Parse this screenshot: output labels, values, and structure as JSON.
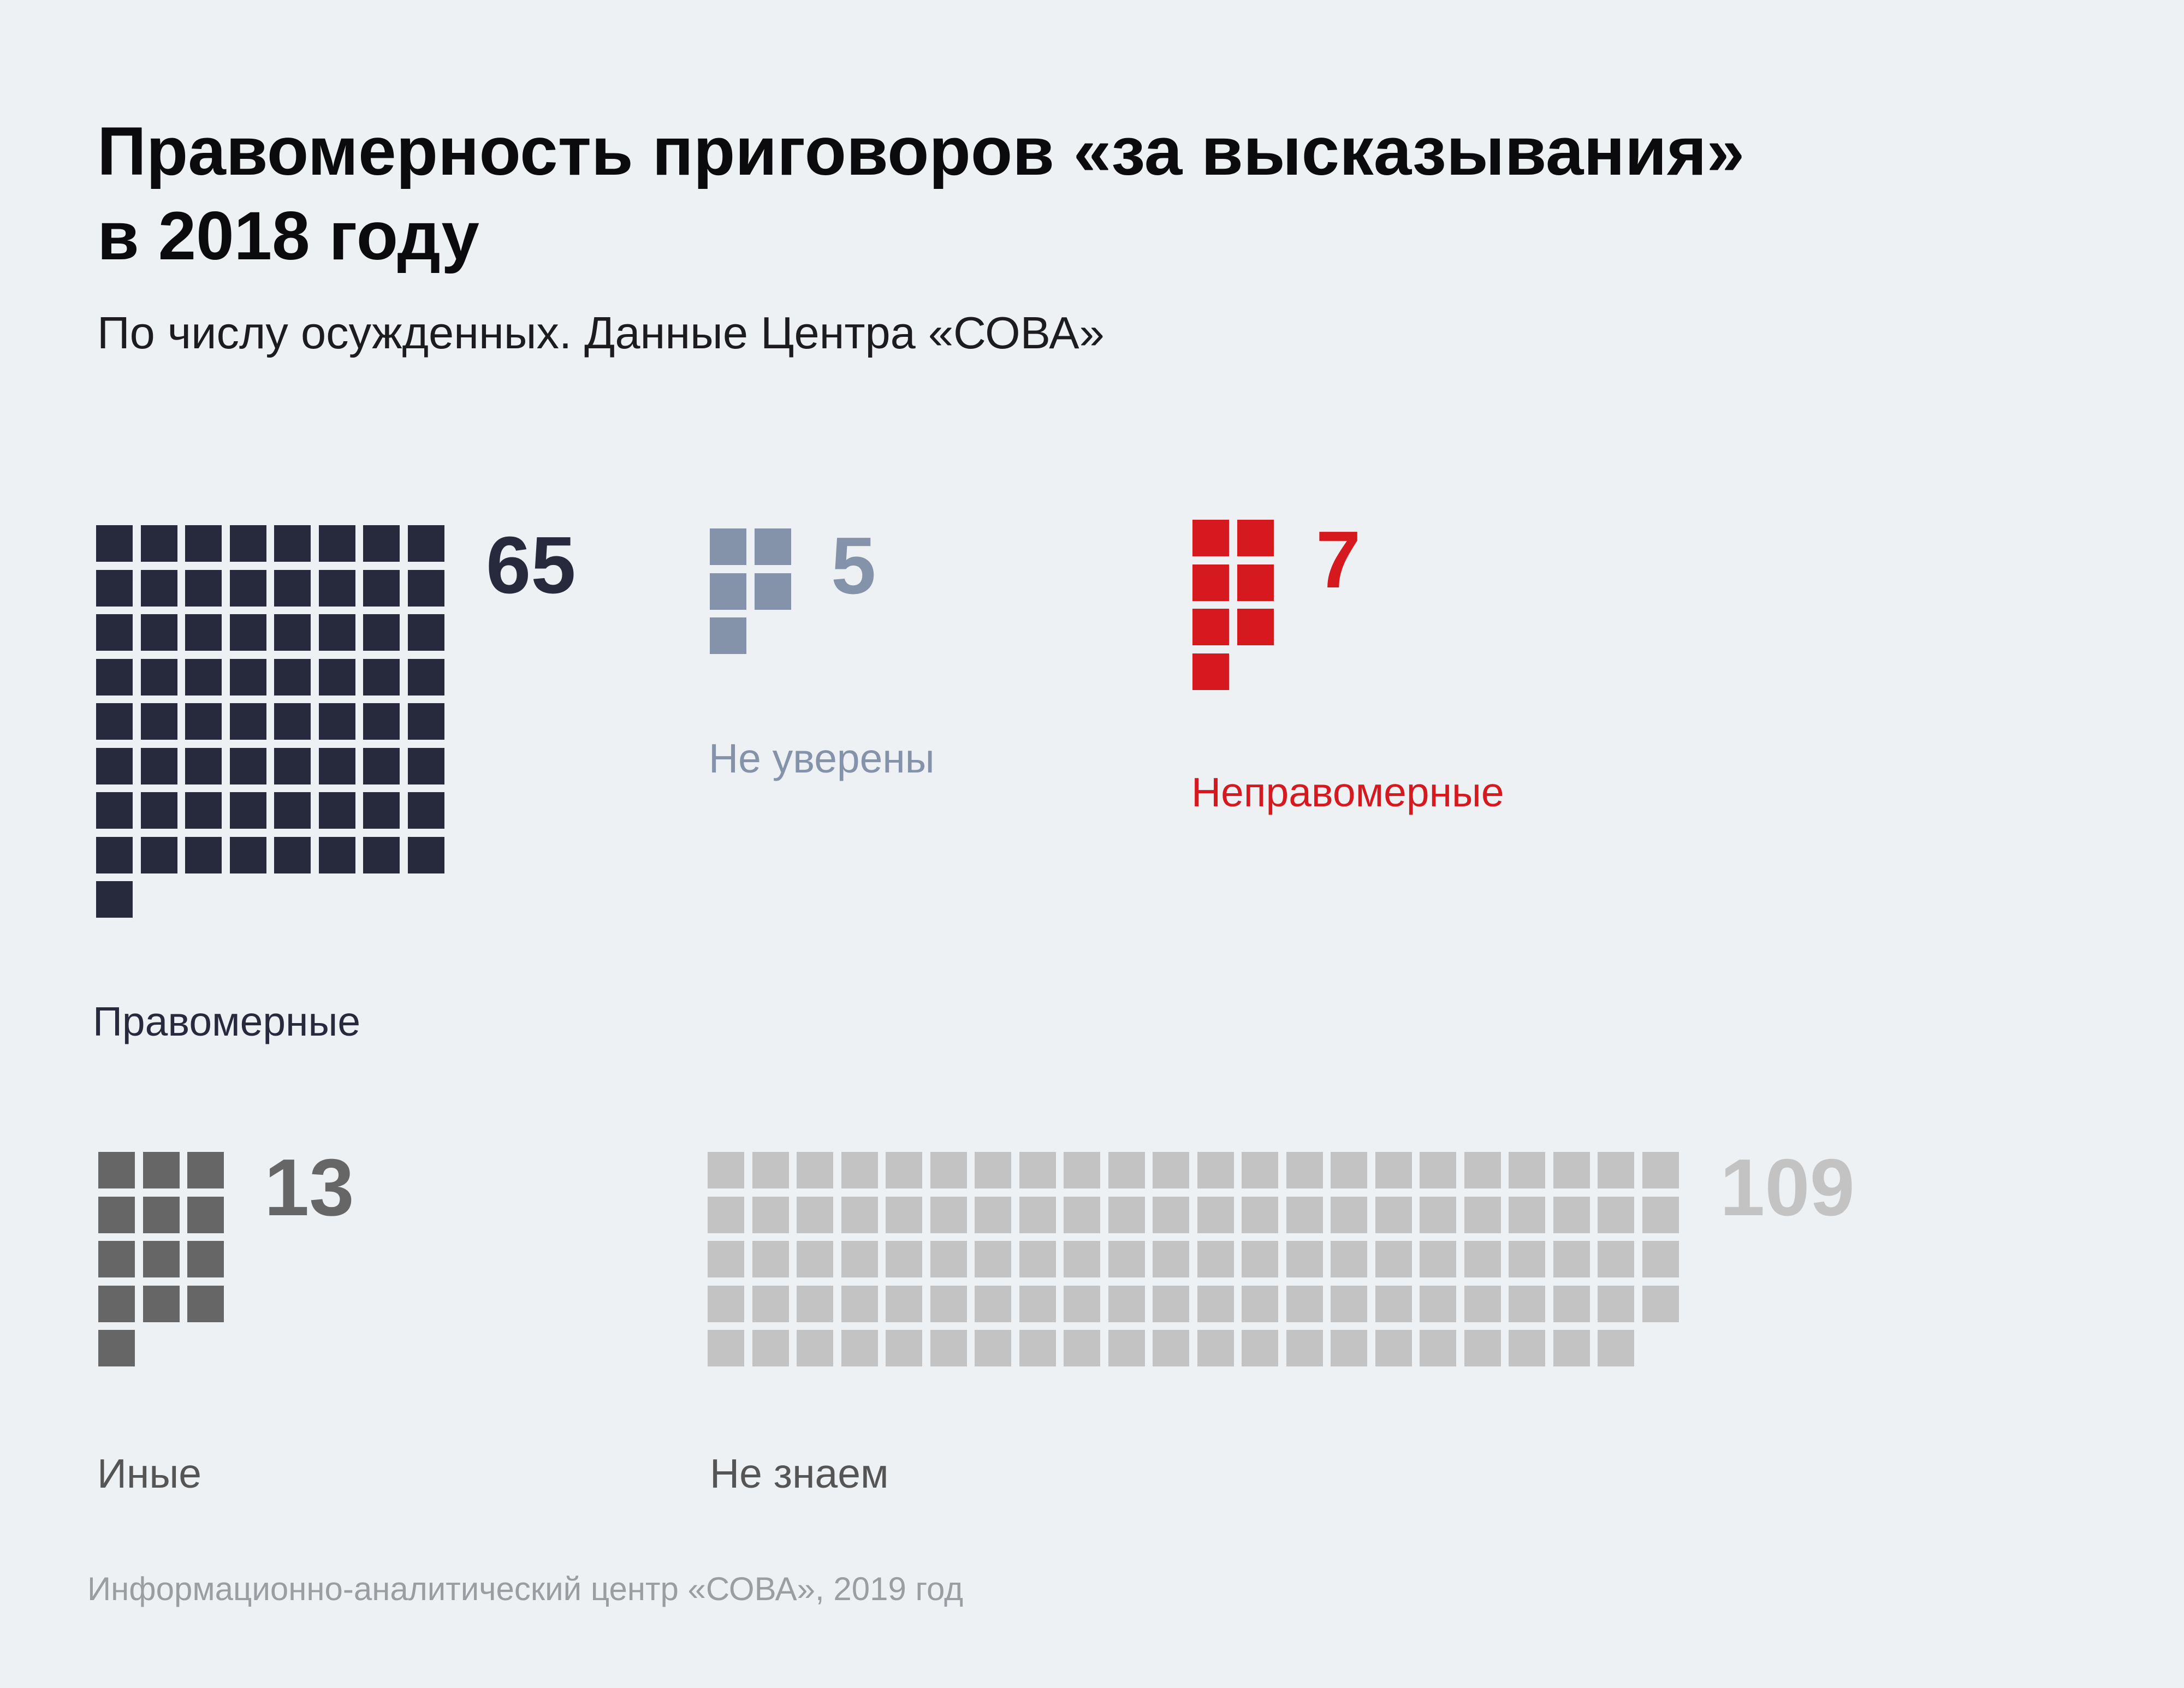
{
  "title_line1": "Правомерность приговоров «за высказывания»",
  "title_line2": "в 2018 году",
  "subtitle": "По числу осужденных. Данные Центра «СОВА»",
  "source": "Информационно-аналитический центр «СОВА», 2019 год",
  "chart_data": {
    "type": "waffle",
    "title": "Правомерность приговоров «за высказывания» в 2018 году",
    "subtitle": "По числу осужденных. Данные Центра «СОВА»",
    "unit": "one square = one convicted person",
    "categories": [
      {
        "id": "lawful",
        "label": "Правомерные",
        "value": 65,
        "color": "#272a3c"
      },
      {
        "id": "unsure",
        "label": "Не уверены",
        "value": 5,
        "color": "#8492aa"
      },
      {
        "id": "unlawful",
        "label": "Неправомерные",
        "value": 7,
        "color": "#d5191f"
      },
      {
        "id": "other",
        "label": "Иные",
        "value": 13,
        "color": "#666666"
      },
      {
        "id": "unknown",
        "label": "Не знаем",
        "value": 109,
        "color": "#c3c3c3"
      }
    ]
  }
}
